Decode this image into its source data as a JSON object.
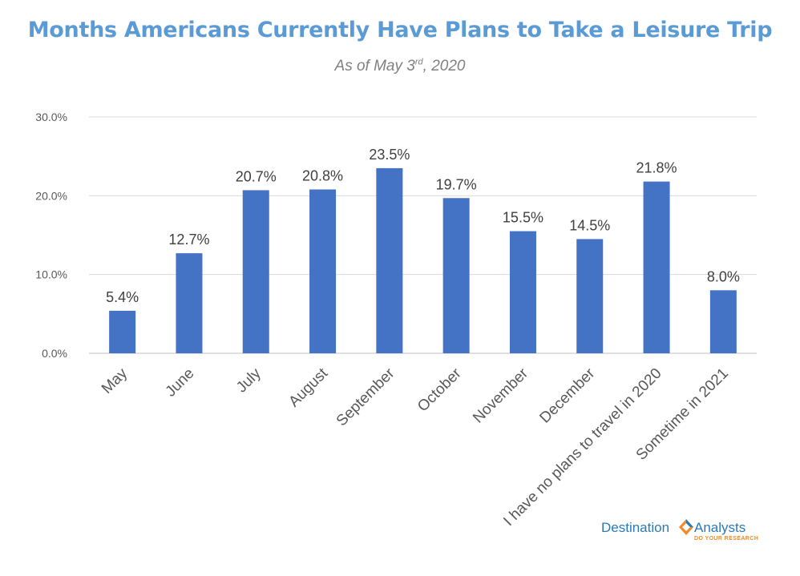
{
  "chart_data": {
    "type": "bar",
    "title": "Months Americans Currently Have Plans to Take a Leisure Trip",
    "subtitle_main": "As of May 3",
    "subtitle_sup": "rd",
    "subtitle_end": ", 2020",
    "categories": [
      "May",
      "June",
      "July",
      "August",
      "September",
      "October",
      "November",
      "December",
      "I have no plans to travel in 2020",
      "Sometime in 2021"
    ],
    "values": [
      5.4,
      12.7,
      20.7,
      20.8,
      23.5,
      19.7,
      15.5,
      14.5,
      21.8,
      8.0
    ],
    "data_labels": [
      "5.4%",
      "12.7%",
      "20.7%",
      "20.8%",
      "23.5%",
      "19.7%",
      "15.5%",
      "14.5%",
      "21.8%",
      "8.0%"
    ],
    "y_ticks": [
      0,
      10,
      20,
      30
    ],
    "y_tick_labels": [
      "0.0%",
      "10.0%",
      "20.0%",
      "30.0%"
    ],
    "ylim": [
      0,
      30
    ],
    "xlabel": "",
    "ylabel": "",
    "grid": true,
    "legend": "none",
    "bar_color": "#4472c4"
  },
  "branding": {
    "logo_left": "Destination",
    "logo_right": "Analysts",
    "logo_tagline": "DO YOUR RESEARCH",
    "icon": "diamond-logo-icon"
  }
}
